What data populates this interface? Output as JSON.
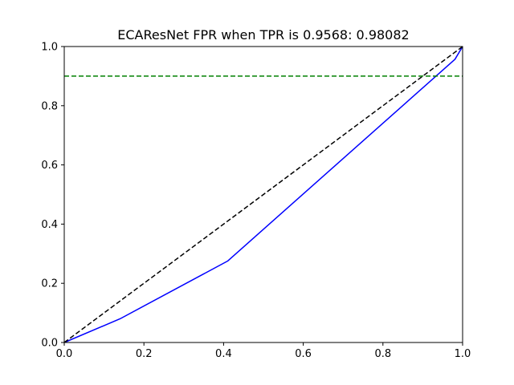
{
  "chart_data": {
    "type": "line",
    "title": "ECAResNet FPR when TPR is 0.9568: 0.98082",
    "xlabel": "",
    "ylabel": "",
    "xlim": [
      0.0,
      1.0
    ],
    "ylim": [
      0.0,
      1.0
    ],
    "grid": false,
    "legend": "none",
    "x_ticks": [
      "0.0",
      "0.2",
      "0.4",
      "0.6",
      "0.8",
      "1.0"
    ],
    "y_ticks": [
      "0.0",
      "0.2",
      "0.4",
      "0.6",
      "0.8",
      "1.0"
    ],
    "series": [
      {
        "color": "#0000ff",
        "style": "solid",
        "x": [
          0.0,
          0.14,
          0.41,
          0.98082,
          1.0
        ],
        "y": [
          0.0,
          0.08,
          0.275,
          0.9568,
          1.0
        ]
      },
      {
        "color": "#000000",
        "style": "dashed",
        "x": [
          0.0,
          1.0
        ],
        "y": [
          0.0,
          1.0
        ]
      },
      {
        "color": "#008000",
        "style": "dashed",
        "x": [
          0.0,
          1.0
        ],
        "y": [
          0.9,
          0.9
        ]
      }
    ]
  }
}
